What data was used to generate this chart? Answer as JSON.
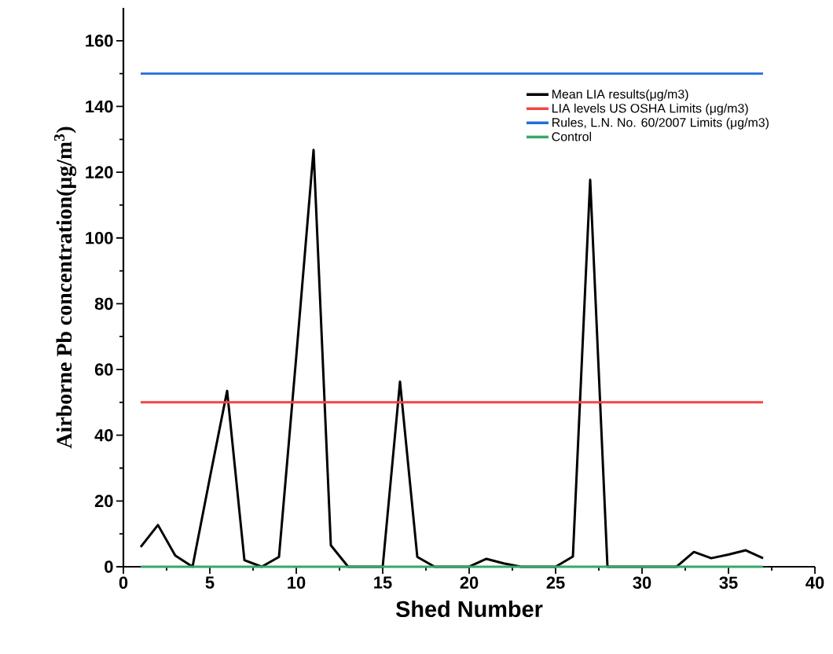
{
  "chart_data": {
    "type": "line",
    "xlabel": "Shed Number",
    "ylabel": "Airborne Pb concentration(μg/m$^{3}$)",
    "xlim": [
      0,
      40
    ],
    "ylim": [
      0,
      170
    ],
    "xticks": [
      0,
      5,
      10,
      15,
      20,
      25,
      30,
      35,
      40
    ],
    "yticks": [
      0,
      20,
      40,
      60,
      80,
      100,
      120,
      140,
      160
    ],
    "legend": "top right",
    "series": [
      {
        "name": "Mean LIA results(μg/m3)",
        "color": "#000000",
        "x": [
          1,
          2,
          3,
          4,
          5,
          6,
          7,
          8,
          9,
          10,
          11,
          12,
          13,
          14,
          15,
          16,
          17,
          18,
          19,
          20,
          21,
          22,
          23,
          24,
          25,
          26,
          27,
          28,
          29,
          30,
          31,
          32,
          33,
          34,
          35,
          36,
          37
        ],
        "values": [
          6,
          12.7,
          3.4,
          0,
          27,
          53.5,
          2,
          0,
          3,
          64,
          126.8,
          6.5,
          0,
          0,
          0,
          56.3,
          3,
          0,
          0,
          0,
          2.4,
          1,
          0,
          0,
          0,
          3.1,
          117.7,
          0,
          0,
          0,
          0,
          0,
          4.5,
          2.6,
          3.7,
          5,
          2.6
        ]
      },
      {
        "name": "LIA levels US OSHA Limits (μg/m3)",
        "color": "#f44444",
        "x": [
          1,
          37
        ],
        "values": [
          50,
          50
        ]
      },
      {
        "name": "Rules, L.N. No. 60/2007 Limits (μg/m3)",
        "color": "#1f6fdc",
        "x": [
          1,
          37
        ],
        "values": [
          150,
          150
        ]
      },
      {
        "name": "Control",
        "color": "#3aa66a",
        "x": [
          1,
          37
        ],
        "values": [
          0,
          0
        ]
      }
    ]
  }
}
